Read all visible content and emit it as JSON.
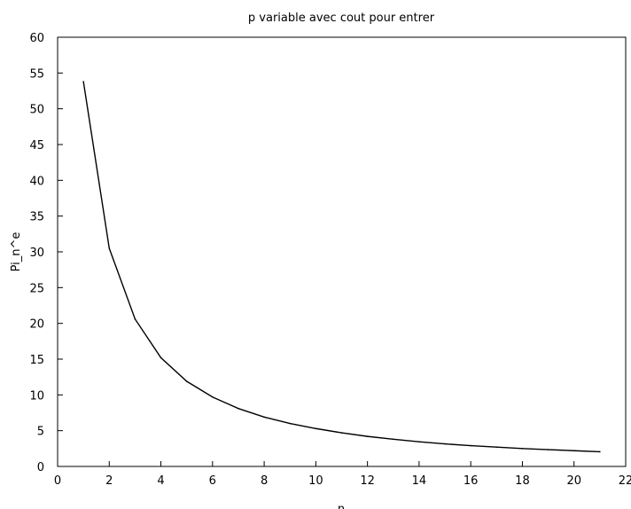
{
  "chart_data": {
    "type": "line",
    "title": "p variable avec cout pour entrer",
    "xlabel": "n",
    "ylabel": "Pi_n^e",
    "xlim": [
      0,
      22
    ],
    "ylim": [
      0,
      60
    ],
    "x_ticks": [
      0,
      2,
      4,
      6,
      8,
      10,
      12,
      14,
      16,
      18,
      20,
      22
    ],
    "y_ticks": [
      0,
      5,
      10,
      15,
      20,
      25,
      30,
      35,
      40,
      45,
      50,
      55,
      60
    ],
    "grid": false,
    "legend": "none",
    "series": [
      {
        "color": "#000000",
        "x": [
          1,
          2,
          3,
          4,
          5,
          6,
          7,
          8,
          9,
          10,
          11,
          12,
          13,
          14,
          15,
          16,
          17,
          18,
          19,
          20,
          21
        ],
        "y": [
          53.8,
          30.5,
          20.6,
          15.2,
          11.9,
          9.7,
          8.1,
          6.9,
          6.0,
          5.3,
          4.7,
          4.2,
          3.8,
          3.45,
          3.15,
          2.9,
          2.7,
          2.5,
          2.35,
          2.2,
          2.05
        ]
      }
    ]
  }
}
